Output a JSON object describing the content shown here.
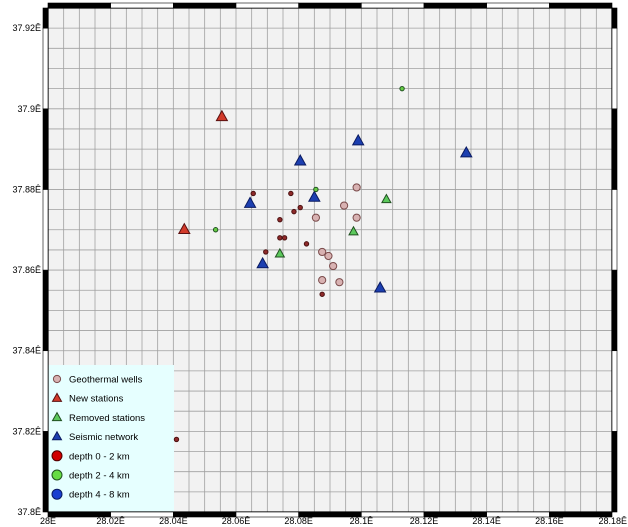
{
  "map": {
    "x_range": [
      28.0,
      28.18
    ],
    "y_range": [
      37.8,
      37.925
    ],
    "x_ticks": [
      {
        "value": 28.0,
        "label": "28Ê"
      },
      {
        "value": 28.02,
        "label": "28.02Ê"
      },
      {
        "value": 28.04,
        "label": "28.04Ê"
      },
      {
        "value": 28.06,
        "label": "28.06Ê"
      },
      {
        "value": 28.08,
        "label": "28.08Ê"
      },
      {
        "value": 28.1,
        "label": "28.1Ê"
      },
      {
        "value": 28.12,
        "label": "28.12Ê"
      },
      {
        "value": 28.14,
        "label": "28.14Ê"
      },
      {
        "value": 28.16,
        "label": "28.16Ê"
      },
      {
        "value": 28.18,
        "label": "28.18Ê"
      }
    ],
    "y_ticks": [
      {
        "value": 37.8,
        "label": "37.8Ê"
      },
      {
        "value": 37.82,
        "label": "37.82Ê"
      },
      {
        "value": 37.84,
        "label": "37.84Ê"
      },
      {
        "value": 37.86,
        "label": "37.86Ê"
      },
      {
        "value": 37.88,
        "label": "37.88Ê"
      },
      {
        "value": 37.9,
        "label": "37.9Ê"
      },
      {
        "value": 37.92,
        "label": "37.92Ê"
      }
    ],
    "minor_step": 0.005,
    "colors": {
      "background": "#f2f2f2",
      "grid": "#a0a0a0",
      "frame": "#000000",
      "legend_bg": "#e6ffff",
      "well_fill": "#d8b2b2",
      "well_stroke": "#7a4a4a",
      "new_station": "#d23a2a",
      "removed_station": "#5cc95c",
      "seismic": "#1c3fb0",
      "quake_shallow": "#8e2a2a",
      "quake_mid": "#66cc44",
      "quake_deep": "#2a3fd0"
    }
  },
  "legend": [
    {
      "label": "Geothermal wells",
      "symbol": "circle",
      "fill": "#d8b2b2",
      "stroke": "#7a4a4a"
    },
    {
      "label": "New stations",
      "symbol": "triangle",
      "fill": "#d23a2a",
      "stroke": "#5a1010"
    },
    {
      "label": "Removed stations",
      "symbol": "triangle",
      "fill": "#5cc95c",
      "stroke": "#205020"
    },
    {
      "label": "Seismic network",
      "symbol": "triangle",
      "fill": "#1c3fb0",
      "stroke": "#0a1a60"
    },
    {
      "label": "depth 0 - 2 km",
      "symbol": "dot",
      "fill": "#d00000",
      "stroke": "#500000"
    },
    {
      "label": "depth 2 -  4 km",
      "symbol": "dot",
      "fill": "#66dd44",
      "stroke": "#205020"
    },
    {
      "label": "depth 4 - 8 km",
      "symbol": "dot",
      "fill": "#1a3fd0",
      "stroke": "#0a1a60"
    }
  ],
  "chart_data": {
    "type": "scatter",
    "xlim": [
      28.0,
      28.18
    ],
    "ylim": [
      37.8,
      37.925
    ],
    "grid": true,
    "legend_position": "bottom-left",
    "series": [
      {
        "name": "Geothermal wells",
        "points": [
          [
            28.0875,
            37.8645
          ],
          [
            28.0895,
            37.8635
          ],
          [
            28.0855,
            37.873
          ],
          [
            28.0945,
            37.876
          ],
          [
            28.0985,
            37.8805
          ],
          [
            28.0985,
            37.873
          ],
          [
            28.091,
            37.861
          ],
          [
            28.0875,
            37.8575
          ],
          [
            28.093,
            37.857
          ]
        ]
      },
      {
        "name": "New stations",
        "points": [
          [
            28.0555,
            37.898
          ],
          [
            28.0435,
            37.87
          ]
        ]
      },
      {
        "name": "Removed stations",
        "points": [
          [
            28.085,
            37.878
          ],
          [
            28.108,
            37.8775
          ],
          [
            28.0975,
            37.8695
          ],
          [
            28.074,
            37.864
          ]
        ]
      },
      {
        "name": "Seismic network",
        "points": [
          [
            28.0805,
            37.887
          ],
          [
            28.099,
            37.892
          ],
          [
            28.1335,
            37.889
          ],
          [
            28.0645,
            37.8765
          ],
          [
            28.0685,
            37.8615
          ],
          [
            28.106,
            37.8555
          ],
          [
            28.085,
            37.878
          ]
        ]
      },
      {
        "name": "depth 0 - 2 km",
        "points": [
          [
            28.0655,
            37.879
          ],
          [
            28.0775,
            37.879
          ],
          [
            28.0805,
            37.8755
          ],
          [
            28.0785,
            37.8745
          ],
          [
            28.074,
            37.8725
          ],
          [
            28.074,
            37.868
          ],
          [
            28.0755,
            37.868
          ],
          [
            28.0695,
            37.8645
          ],
          [
            28.0825,
            37.8665
          ],
          [
            28.0875,
            37.854
          ],
          [
            28.041,
            37.818
          ]
        ]
      },
      {
        "name": "depth 2 -  4 km",
        "points": [
          [
            28.113,
            37.905
          ],
          [
            28.0535,
            37.87
          ],
          [
            28.0855,
            37.88
          ]
        ]
      }
    ]
  }
}
